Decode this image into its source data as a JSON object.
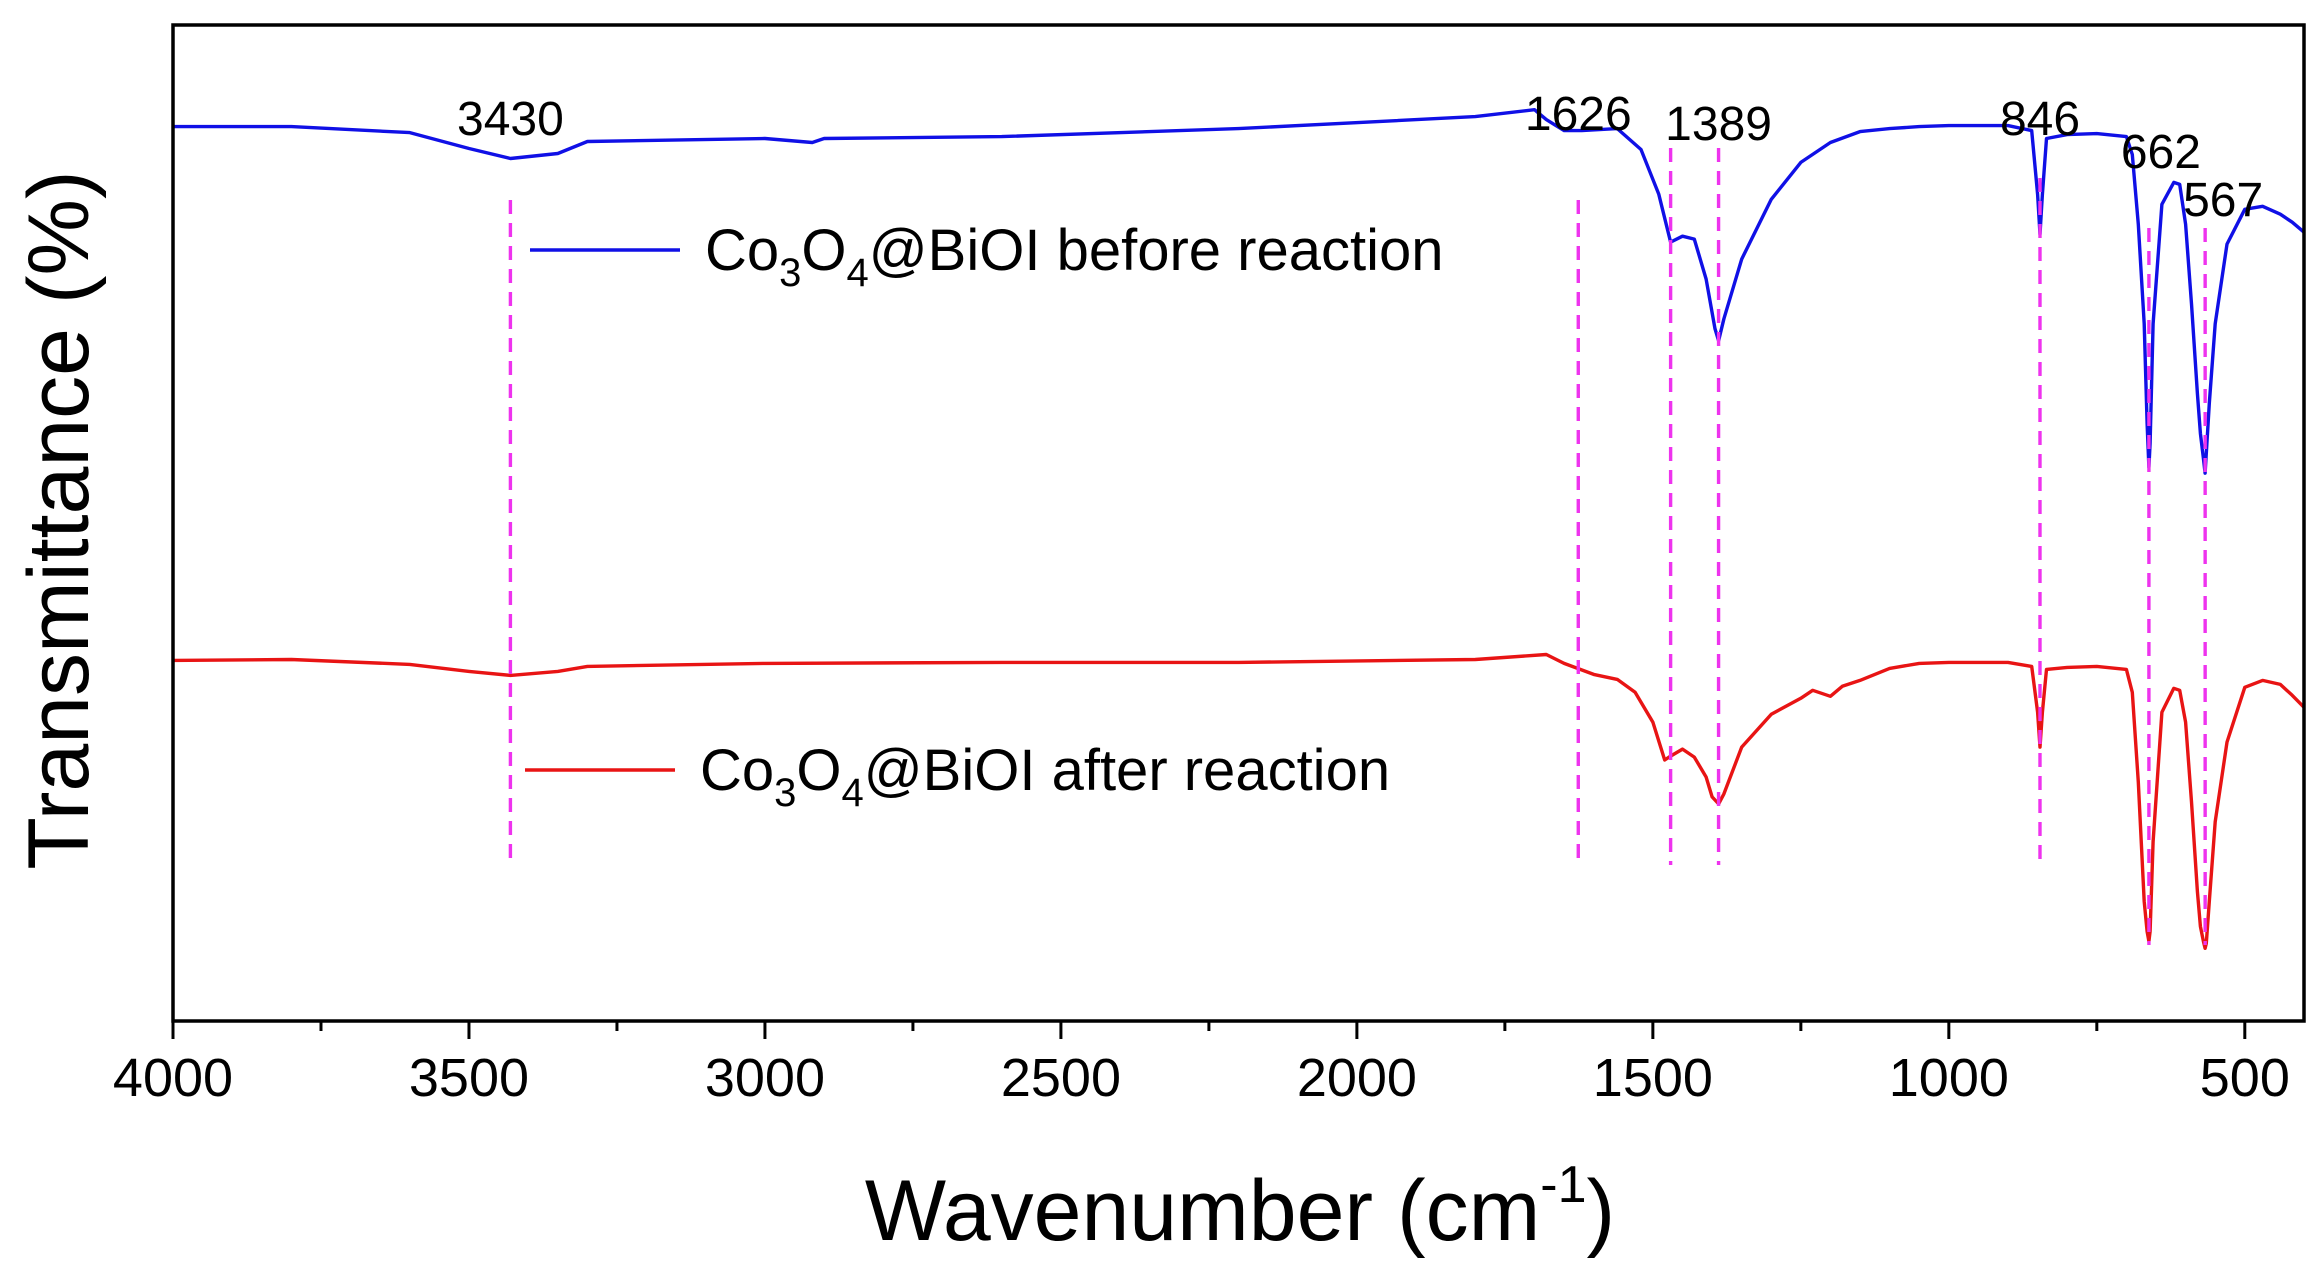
{
  "chart_data": {
    "type": "line",
    "title": "",
    "xlabel": "Wavenumber (cm",
    "xlabel_sup": "-1",
    "xlabel_end": ")",
    "ylabel": "Transmittance (%)",
    "xlim": [
      4000,
      400
    ],
    "x_reversed": true,
    "ylim": [
      0,
      100
    ],
    "y_ticks_shown": false,
    "x_ticks": [
      4000,
      3500,
      3000,
      2500,
      2000,
      1500,
      1000,
      500
    ],
    "x_minor_step": 250,
    "series": [
      {
        "name": "Co3O4@BiOI before reaction",
        "color": "#1010e6",
        "legend": {
          "pre": "Co",
          "sub1": "3",
          "mid": "O",
          "sub2": "4",
          "post": "@BiOI before reaction"
        },
        "x": [
          4000,
          3800,
          3600,
          3500,
          3430,
          3350,
          3300,
          3000,
          2920,
          2900,
          2600,
          2200,
          1800,
          1700,
          1680,
          1650,
          1620,
          1560,
          1520,
          1490,
          1470,
          1450,
          1430,
          1410,
          1395,
          1389,
          1380,
          1350,
          1300,
          1250,
          1200,
          1150,
          1100,
          1050,
          1000,
          900,
          860,
          850,
          846,
          842,
          835,
          800,
          750,
          700,
          690,
          680,
          670,
          665,
          662,
          660,
          655,
          640,
          620,
          610,
          600,
          590,
          580,
          575,
          570,
          567,
          565,
          560,
          550,
          530,
          500,
          470,
          440,
          420,
          400
        ],
        "y": [
          89.8,
          89.8,
          89.2,
          87.6,
          86.6,
          87.1,
          88.3,
          88.6,
          88.2,
          88.6,
          88.8,
          89.6,
          90.8,
          91.5,
          90.5,
          89.4,
          89.4,
          89.6,
          87.5,
          83.0,
          78.2,
          78.8,
          78.5,
          74.5,
          69.5,
          68.3,
          70.5,
          76.5,
          82.5,
          86.2,
          88.2,
          89.3,
          89.6,
          89.8,
          89.9,
          89.9,
          89.4,
          83.0,
          79.0,
          83.0,
          88.6,
          89.0,
          89.1,
          88.8,
          87.0,
          80.0,
          70.0,
          60.0,
          55.6,
          58.0,
          70.0,
          82.0,
          84.2,
          84.0,
          80.0,
          72.0,
          63.0,
          59.0,
          56.5,
          55.0,
          57.0,
          62.0,
          70.0,
          78.0,
          81.5,
          81.8,
          81.0,
          80.2,
          79.2
        ]
      },
      {
        "name": "Co3O4@BiOI after reaction",
        "color": "#e81414",
        "legend": {
          "pre": "Co",
          "sub1": "3",
          "mid": "O",
          "sub2": "4",
          "post": "@BiOI after reaction"
        },
        "x": [
          4000,
          3800,
          3600,
          3500,
          3430,
          3350,
          3300,
          3000,
          2600,
          2200,
          1800,
          1680,
          1650,
          1600,
          1560,
          1530,
          1500,
          1480,
          1470,
          1450,
          1430,
          1410,
          1400,
          1389,
          1380,
          1350,
          1300,
          1250,
          1230,
          1200,
          1180,
          1150,
          1100,
          1050,
          1000,
          900,
          860,
          850,
          846,
          842,
          835,
          800,
          750,
          700,
          690,
          680,
          670,
          665,
          662,
          660,
          655,
          640,
          620,
          610,
          600,
          590,
          580,
          575,
          570,
          567,
          565,
          560,
          550,
          530,
          500,
          470,
          440,
          420,
          400
        ],
        "y": [
          36.2,
          36.3,
          35.8,
          35.1,
          34.7,
          35.1,
          35.6,
          35.9,
          36.0,
          36.0,
          36.3,
          36.8,
          35.9,
          34.8,
          34.3,
          33.0,
          30.0,
          26.2,
          26.6,
          27.3,
          26.5,
          24.5,
          22.5,
          21.8,
          22.8,
          27.5,
          30.8,
          32.4,
          33.2,
          32.6,
          33.6,
          34.2,
          35.4,
          35.9,
          36.0,
          36.0,
          35.6,
          31.0,
          27.5,
          31.0,
          35.3,
          35.5,
          35.6,
          35.3,
          33.0,
          24.0,
          12.0,
          9.0,
          8.0,
          9.0,
          18.0,
          31.0,
          33.4,
          33.2,
          30.0,
          22.0,
          13.0,
          9.5,
          8.0,
          7.3,
          7.8,
          12.0,
          20.0,
          28.0,
          33.5,
          34.2,
          33.8,
          32.7,
          31.5
        ]
      }
    ],
    "peak_markers": [
      {
        "x": 3430,
        "label": "3430"
      },
      {
        "x": 1626,
        "label": "1626"
      },
      {
        "x": 1470,
        "label": ""
      },
      {
        "x": 1389,
        "label": "1389"
      },
      {
        "x": 846,
        "label": "846"
      },
      {
        "x": 662,
        "label": "662"
      },
      {
        "x": 567,
        "label": "567"
      }
    ],
    "marker_color": "#ee33ee"
  }
}
